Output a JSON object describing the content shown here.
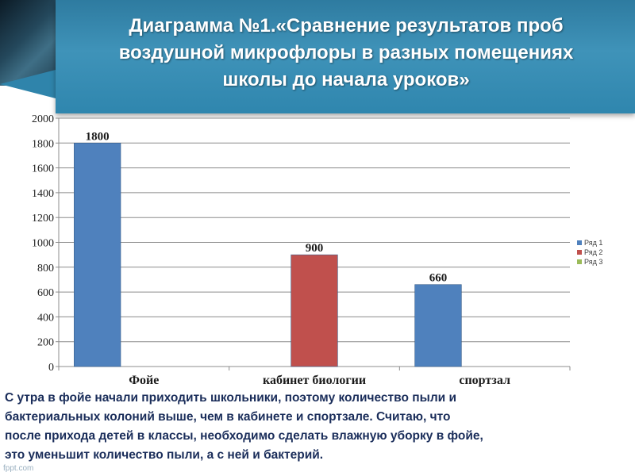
{
  "slide": {
    "title_lines": [
      "Диаграмма №1.«Сравнение  результатов проб",
      "воздушной микрофлоры в разных помещениях",
      "школы до начала уроков»"
    ],
    "caption_lines": [
      "С утра в фойе начали приходить школьники, поэтому количество пыли и",
      "бактериальных колоний выше, чем в кабинете и спортзале. Считаю, что",
      "после прихода детей в классы, необходимо сделать влажную уборку в фойе,",
      "это  уменьшит количество пыли, а с ней и бактерий."
    ],
    "watermark": "fppt.com"
  },
  "chart_data": {
    "type": "bar",
    "categories": [
      "Фойе",
      "кабинет биологии",
      "спортзал"
    ],
    "series": [
      {
        "name": "Ряд 1",
        "color": "#4f81bd",
        "values": [
          1800,
          null,
          660
        ]
      },
      {
        "name": "Ряд 2",
        "color": "#c0504d",
        "values": [
          null,
          900,
          null
        ]
      },
      {
        "name": "Ряд 3",
        "color": "#9bbb59",
        "values": [
          null,
          null,
          null
        ]
      }
    ],
    "data_labels": [
      "1800",
      "900",
      "660"
    ],
    "ylim": [
      0,
      2000
    ],
    "yticks": [
      0,
      200,
      400,
      600,
      800,
      1000,
      1200,
      1400,
      1600,
      1800,
      2000
    ],
    "grid": true,
    "legend": "right"
  }
}
